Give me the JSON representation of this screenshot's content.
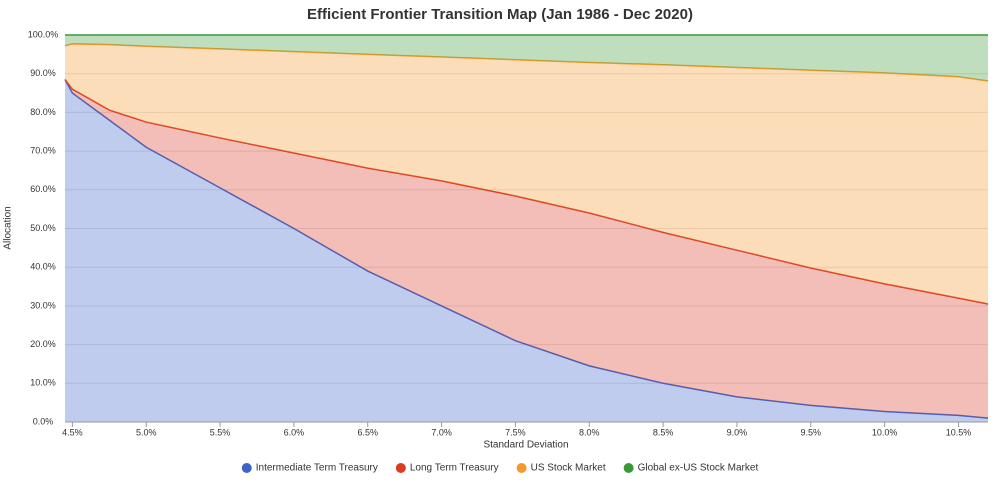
{
  "chart_data": {
    "type": "stacked_area",
    "title": "Efficient Frontier Transition Map (Jan 1986 - Dec 2020)",
    "x_label": "Standard Deviation",
    "y_label": "Allocation",
    "x": [
      4.45,
      4.5,
      4.75,
      5.0,
      5.5,
      6.0,
      6.5,
      7.0,
      7.5,
      8.0,
      8.5,
      9.0,
      9.5,
      10.0,
      10.5,
      10.7
    ],
    "series": [
      {
        "name": "Intermediate Term Treasury",
        "color": "#3e64c8",
        "values": [
          88.5,
          85,
          78,
          71,
          60.5,
          50,
          39,
          30,
          21,
          14.5,
          10,
          6.5,
          4.3,
          2.7,
          1.7,
          1.0
        ]
      },
      {
        "name": "Long Term Treasury",
        "color": "#dc3a25",
        "values": [
          0,
          1,
          2.6,
          6.5,
          12.9,
          19.5,
          26.6,
          32.3,
          37.4,
          39.5,
          39,
          37.9,
          35.5,
          33,
          30.3,
          29.5
        ]
      },
      {
        "name": "US Stock Market",
        "color": "#f29b2b",
        "values": [
          8.7,
          11.7,
          16.9,
          19.6,
          23,
          26.2,
          29.4,
          32,
          35.2,
          38.9,
          43.3,
          47.2,
          51.1,
          54.5,
          57.2,
          57.6
        ]
      },
      {
        "name": "Global ex-US Stock Market",
        "color": "#3a9a3a",
        "values": [
          2.8,
          2.3,
          2.5,
          2.9,
          3.6,
          4.3,
          5,
          5.7,
          6.4,
          7.1,
          7.7,
          8.4,
          9.1,
          9.8,
          10.8,
          11.9
        ]
      }
    ],
    "xlim": [
      4.45,
      10.7
    ],
    "xticks": [
      {
        "value": 4.5,
        "label": "4.5%"
      },
      {
        "value": 5.0,
        "label": "5.0%"
      },
      {
        "value": 5.5,
        "label": "5.5%"
      },
      {
        "value": 6.0,
        "label": "6.0%"
      },
      {
        "value": 6.5,
        "label": "6.5%"
      },
      {
        "value": 7.0,
        "label": "7.0%"
      },
      {
        "value": 7.5,
        "label": "7.5%"
      },
      {
        "value": 8.0,
        "label": "8.0%"
      },
      {
        "value": 8.5,
        "label": "8.5%"
      },
      {
        "value": 9.0,
        "label": "9.0%"
      },
      {
        "value": 9.5,
        "label": "9.5%"
      },
      {
        "value": 10.0,
        "label": "10.0%"
      },
      {
        "value": 10.5,
        "label": "10.5%"
      }
    ],
    "ylim": [
      0,
      100
    ],
    "yticks": [
      {
        "value": 0,
        "label": "0.0%"
      },
      {
        "value": 10,
        "label": "10.0%"
      },
      {
        "value": 20,
        "label": "20.0%"
      },
      {
        "value": 30,
        "label": "30.0%"
      },
      {
        "value": 40,
        "label": "40.0%"
      },
      {
        "value": 50,
        "label": "50.0%"
      },
      {
        "value": 60,
        "label": "60.0%"
      },
      {
        "value": 70,
        "label": "70.0%"
      },
      {
        "value": 80,
        "label": "80.0%"
      },
      {
        "value": 90,
        "label": "90.0%"
      },
      {
        "value": 100,
        "label": "100.0%"
      }
    ],
    "grid": true,
    "legend": "bottom"
  }
}
